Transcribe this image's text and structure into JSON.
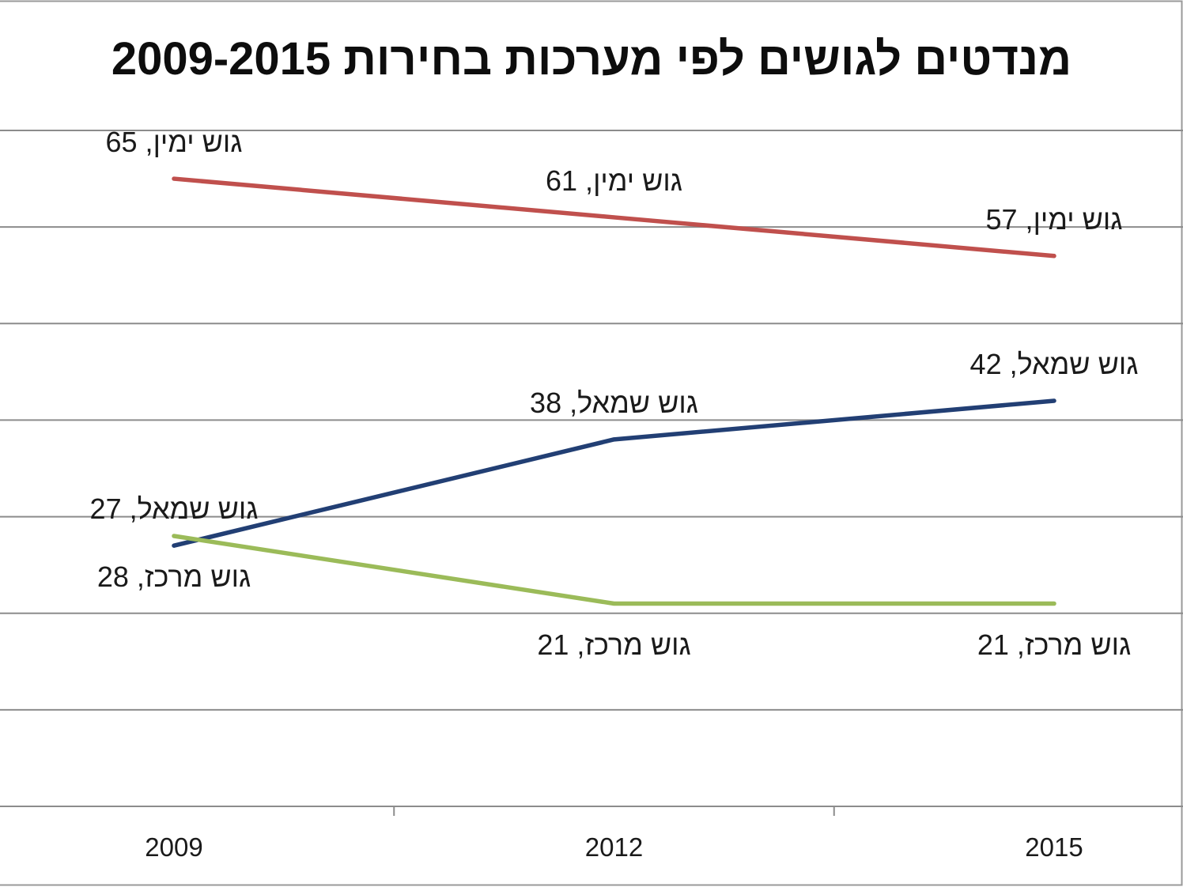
{
  "chart_data": {
    "type": "line",
    "title": "מנדטים לגושים לפי מערכות בחירות 2009-2015",
    "xlabel": "",
    "ylabel": "",
    "categories": [
      "2009",
      "2012",
      "2015"
    ],
    "ylim": [
      0,
      70
    ],
    "y_major_unit": 10,
    "grid": true,
    "legend": "none",
    "data_labels": true,
    "label_separator": ", ",
    "series": [
      {
        "name": "גוש ימין",
        "values": [
          65,
          61,
          57
        ],
        "color": "#C0504D",
        "label_position": "above"
      },
      {
        "name": "גוש שמאל",
        "values": [
          27,
          38,
          42
        ],
        "color": "#223F74",
        "label_position": "above"
      },
      {
        "name": "גוש מרכז",
        "values": [
          28,
          21,
          21
        ],
        "color": "#9BBB59",
        "label_position": "below"
      }
    ]
  },
  "colors": {
    "gridline": "#8C8C8C",
    "border": "#9A9A9A",
    "background": "#FFFFFF"
  }
}
